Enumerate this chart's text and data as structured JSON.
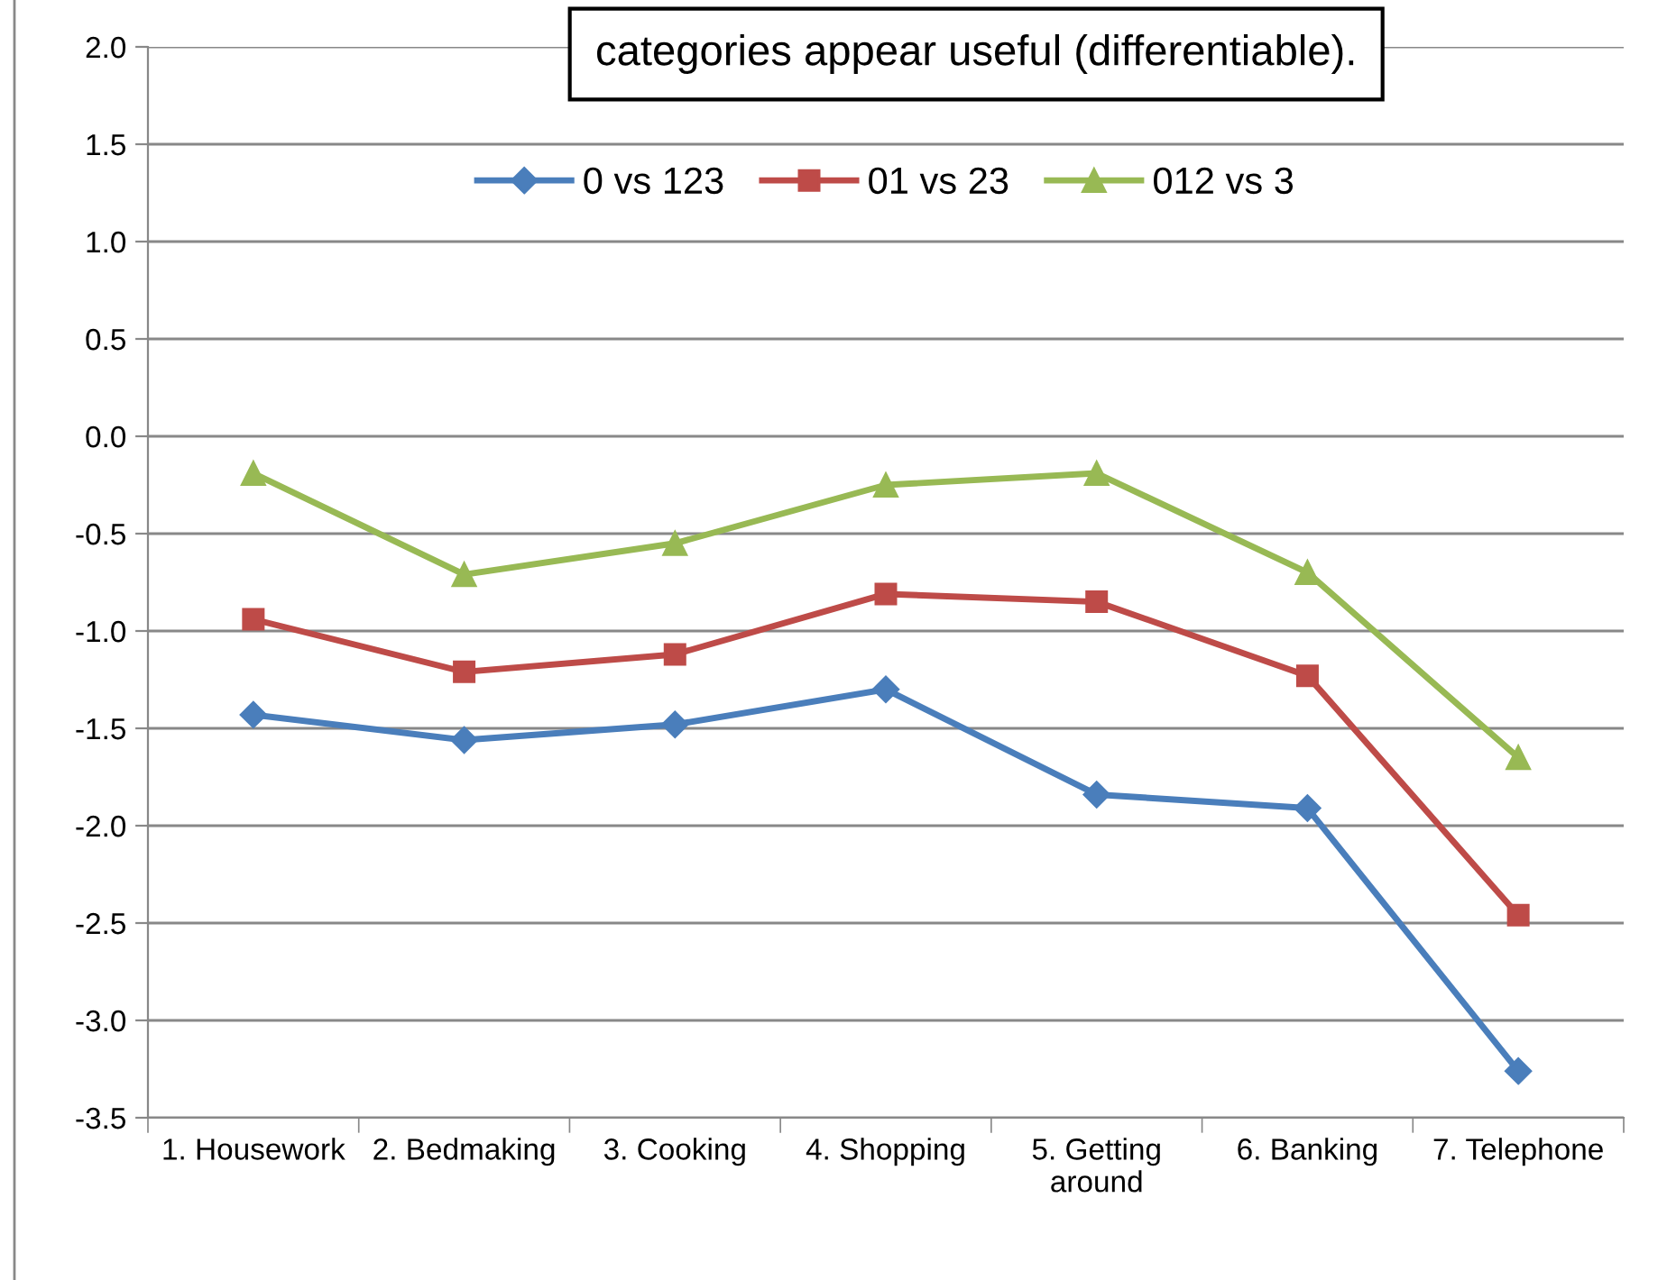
{
  "chart_data": {
    "type": "line",
    "categories": [
      "1. Housework",
      "2. Bedmaking",
      "3. Cooking",
      "4. Shopping",
      "5. Getting\naround",
      "6. Banking",
      "7. Telephone"
    ],
    "series": [
      {
        "name": "0 vs 123",
        "color": "#4a7ebb",
        "marker": "diamond",
        "values": [
          -1.43,
          -1.56,
          -1.48,
          -1.3,
          -1.84,
          -1.91,
          -3.26
        ]
      },
      {
        "name": "01 vs 23",
        "color": "#be4b48",
        "marker": "square",
        "values": [
          -0.94,
          -1.21,
          -1.12,
          -0.81,
          -0.85,
          -1.23,
          -2.46
        ]
      },
      {
        "name": "012 vs 3",
        "color": "#98b954",
        "marker": "triangle",
        "values": [
          -0.19,
          -0.71,
          -0.55,
          -0.25,
          -0.19,
          -0.7,
          -1.65
        ]
      }
    ],
    "ylim": [
      -3.5,
      2.0
    ],
    "yticks": [
      {
        "value": -3.5,
        "label": "-3.5"
      },
      {
        "value": -3.0,
        "label": "-3.0"
      },
      {
        "value": -2.5,
        "label": "-2.5"
      },
      {
        "value": -2.0,
        "label": "-2.0"
      },
      {
        "value": -1.5,
        "label": "-1.5"
      },
      {
        "value": -1.0,
        "label": "-1.0"
      },
      {
        "value": -0.5,
        "label": "-0.5"
      },
      {
        "value": 0.0,
        "label": "0.0"
      },
      {
        "value": 0.5,
        "label": "0.5"
      },
      {
        "value": 1.0,
        "label": "1.0"
      },
      {
        "value": 1.5,
        "label": "1.5"
      },
      {
        "value": 2.0,
        "label": "2.0"
      }
    ],
    "grid": "y",
    "legend": "top",
    "line_style": "solid",
    "annotations": [
      "categories appear useful (differentiable)."
    ]
  }
}
